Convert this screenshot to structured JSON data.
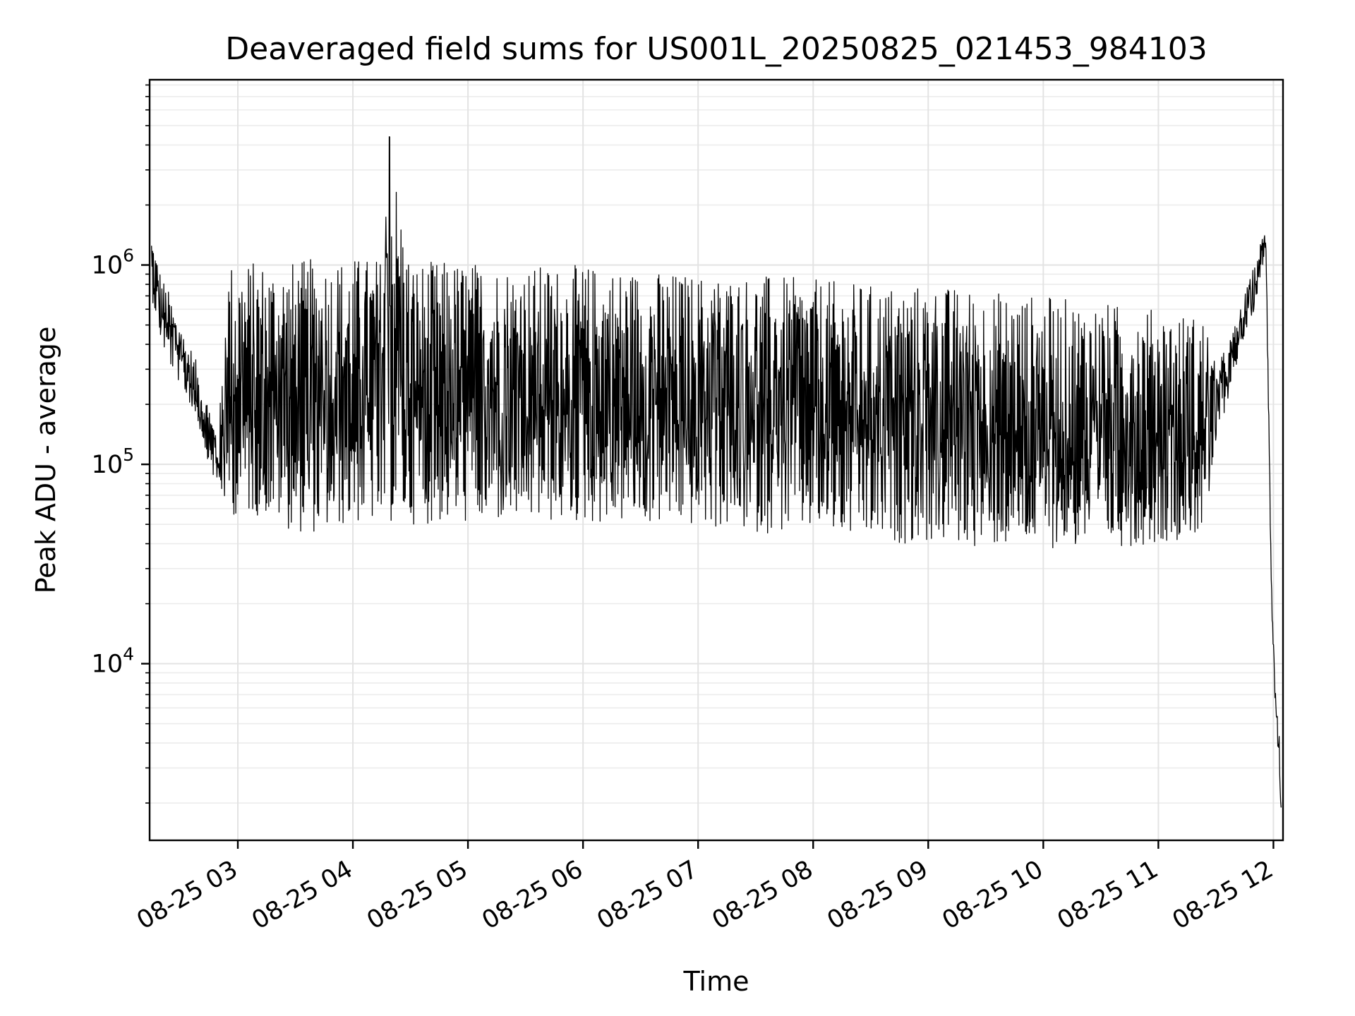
{
  "chart_data": {
    "type": "line",
    "title": "Deaveraged field sums for US001L_20250825_021453_984103",
    "xlabel": "Time",
    "ylabel": "Peak ADU - average",
    "x_ticks": [
      "08-25 03",
      "08-25 04",
      "08-25 05",
      "08-25 06",
      "08-25 07",
      "08-25 08",
      "08-25 09",
      "08-25 10",
      "08-25 11",
      "08-25 12"
    ],
    "y_ticks": [
      {
        "base": "10",
        "exp": "4",
        "value": 10000
      },
      {
        "base": "10",
        "exp": "5",
        "value": 100000
      },
      {
        "base": "10",
        "exp": "6",
        "value": 1000000
      }
    ],
    "xlim": [
      "2025-08-25 02:14",
      "2025-08-25 12:05"
    ],
    "ylim": [
      1300,
      8500000
    ],
    "yscale": "log",
    "grid": true,
    "legend": "none",
    "line_color": "#000000",
    "series": [
      {
        "x": [
          "2025-08-25 02:15",
          "2025-08-25 02:20",
          "2025-08-25 02:25",
          "2025-08-25 02:30",
          "2025-08-25 02:35",
          "2025-08-25 02:40",
          "2025-08-25 02:45",
          "2025-08-25 02:50",
          "2025-08-25 02:55",
          "2025-08-25 03:00",
          "2025-08-25 03:15",
          "2025-08-25 03:30",
          "2025-08-25 03:45",
          "2025-08-25 04:00",
          "2025-08-25 04:15",
          "2025-08-25 04:19",
          "2025-08-25 04:30",
          "2025-08-25 05:00",
          "2025-08-25 05:30",
          "2025-08-25 06:00",
          "2025-08-25 06:30",
          "2025-08-25 07:00",
          "2025-08-25 07:30",
          "2025-08-25 08:00",
          "2025-08-25 08:30",
          "2025-08-25 09:00",
          "2025-08-25 09:30",
          "2025-08-25 10:00",
          "2025-08-25 10:30",
          "2025-08-25 11:00",
          "2025-08-25 11:25",
          "2025-08-25 11:30",
          "2025-08-25 11:40",
          "2025-08-25 11:50",
          "2025-08-25 11:56",
          "2025-08-25 11:59",
          "2025-08-25 12:01",
          "2025-08-25 12:03",
          "2025-08-25 12:04"
        ],
        "y_high": [
          1500000,
          900000,
          700000,
          500000,
          400000,
          300000,
          200000,
          150000,
          1050000,
          1050000,
          1050000,
          1050000,
          1100000,
          1100000,
          1100000,
          4500000,
          1050000,
          1050000,
          1000000,
          1000000,
          950000,
          900000,
          900000,
          850000,
          800000,
          800000,
          750000,
          700000,
          650000,
          600000,
          550000,
          300000,
          500000,
          1000000,
          1600000,
          30000,
          8000,
          5000,
          2000
        ],
        "y_low": [
          700000,
          400000,
          300000,
          250000,
          200000,
          150000,
          100000,
          70000,
          55000,
          55000,
          55000,
          45000,
          45000,
          50000,
          50000,
          50000,
          50000,
          50000,
          50000,
          50000,
          50000,
          48000,
          45000,
          45000,
          40000,
          40000,
          38000,
          38000,
          38000,
          40000,
          45000,
          120000,
          300000,
          600000,
          1200000,
          20000,
          6000,
          3000,
          1700
        ]
      }
    ]
  }
}
